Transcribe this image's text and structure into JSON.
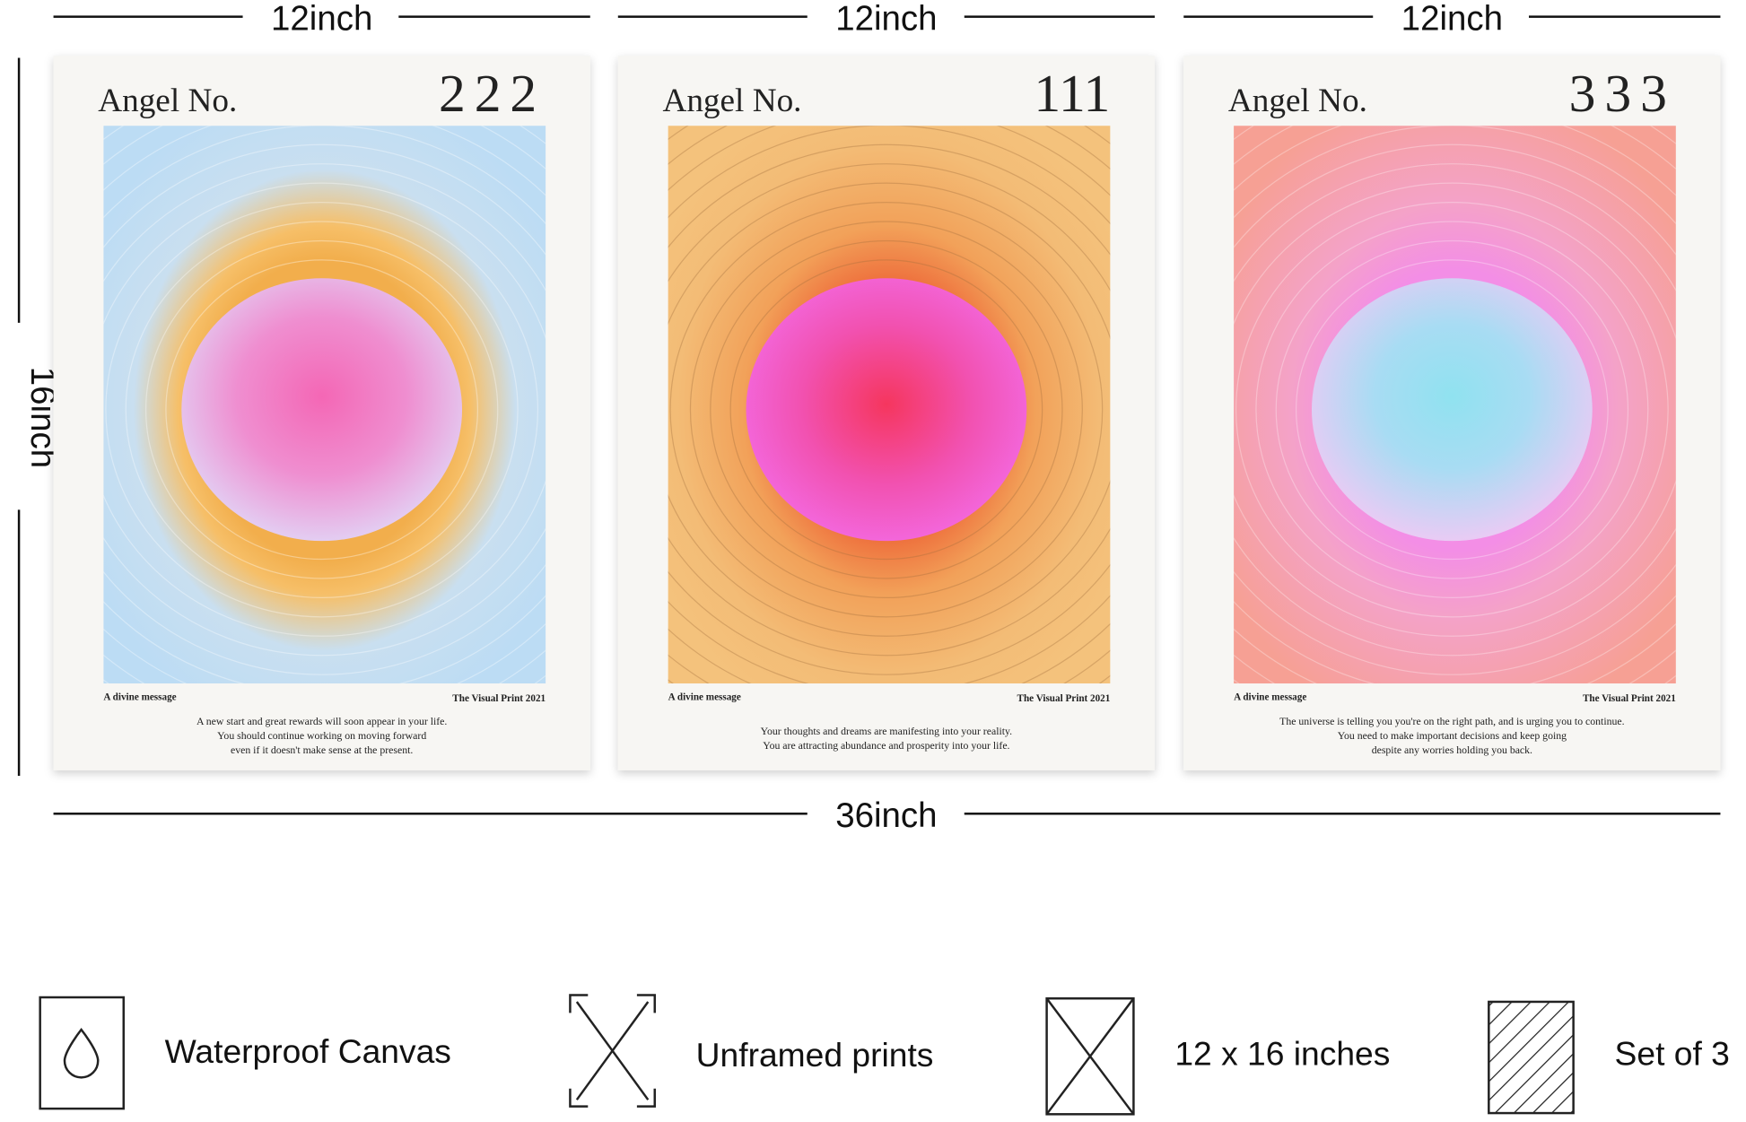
{
  "dimensions": {
    "widths": [
      "12inch",
      "12inch",
      "12inch"
    ],
    "height": "16inch",
    "total_width": "36inch"
  },
  "posters": [
    {
      "title": "Angel No.",
      "number": "222",
      "footer_left": "A divine message",
      "footer_right": "The Visual Print 2021",
      "message": [
        "A new start and great rewards will soon appear in your life.",
        "You should continue working on moving forward",
        "even if it doesn't make sense at the present."
      ]
    },
    {
      "title": "Angel No.",
      "number": "111",
      "footer_left": "A divine message",
      "footer_right": "The Visual Print 2021",
      "message": [
        "Your thoughts and dreams are manifesting into your reality.",
        "You are attracting abundance and prosperity into your life."
      ]
    },
    {
      "title": "Angel No.",
      "number": "333",
      "footer_left": "A divine message",
      "footer_right": "The Visual Print 2021",
      "message": [
        "The universe is telling you you're on the right path, and is urging you to continue.",
        "You need to make important decisions and keep going",
        "despite any worries holding you back."
      ]
    }
  ],
  "features": [
    "Waterproof Canvas",
    "Unframed prints",
    "12 x 16 inches",
    "Set of 3"
  ]
}
